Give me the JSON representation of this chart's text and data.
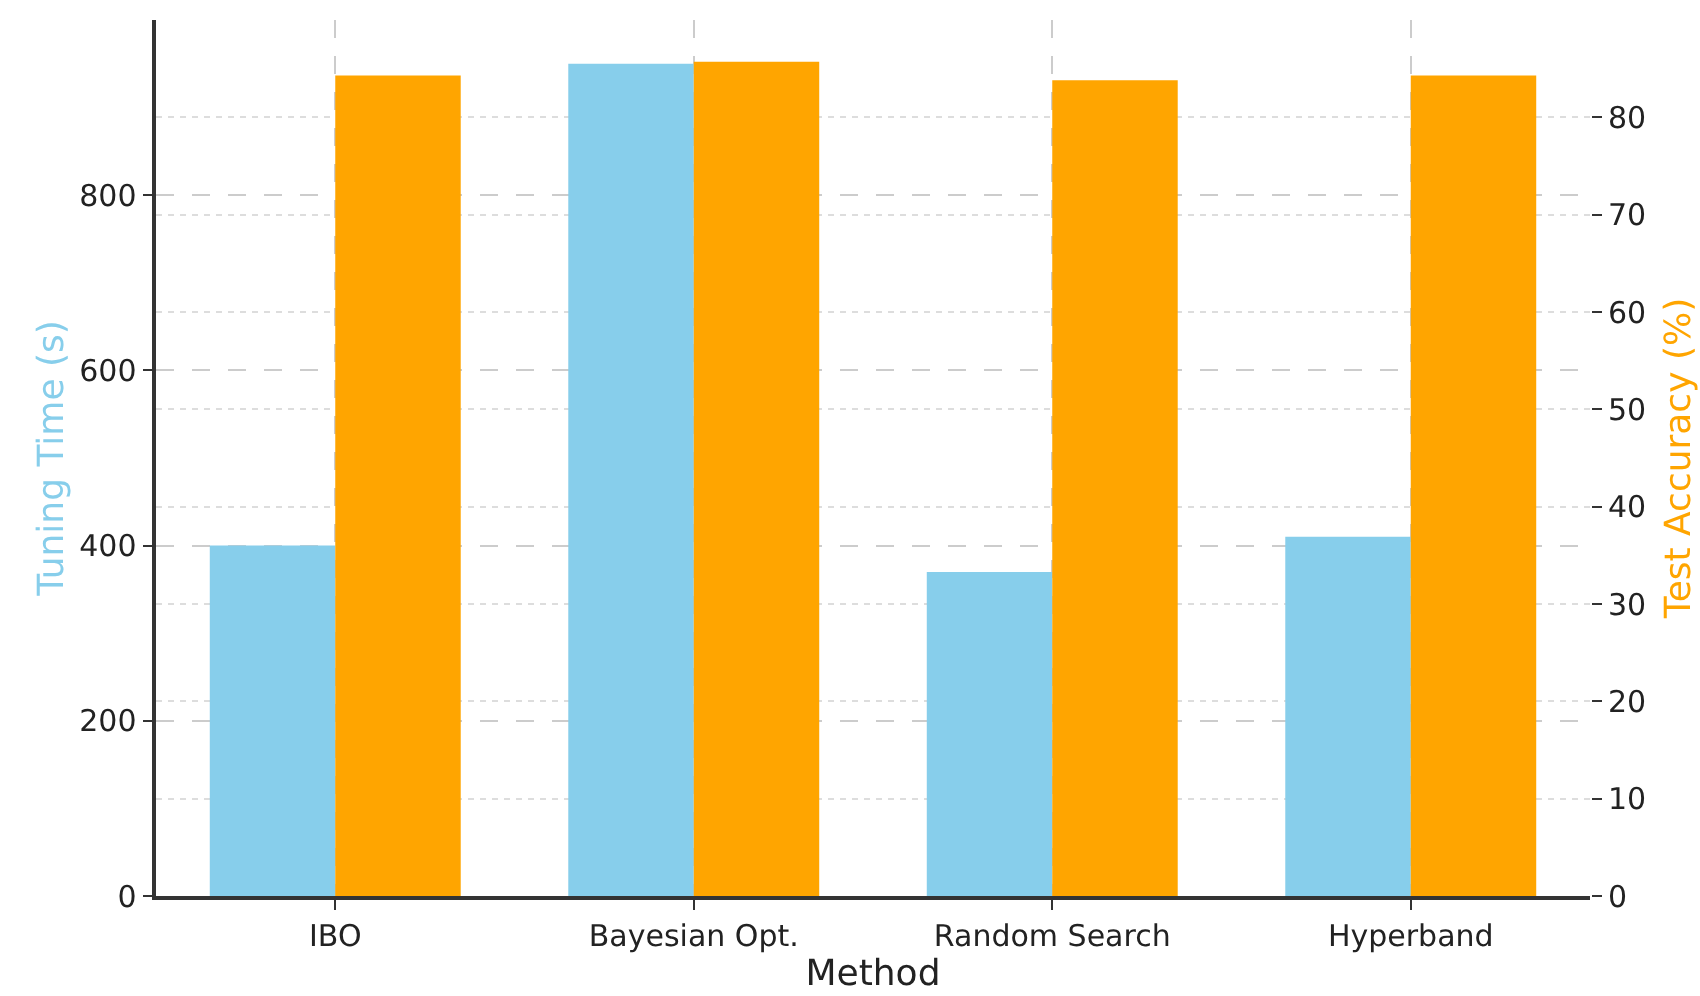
{
  "chart_data": {
    "type": "bar",
    "xlabel": "Method",
    "ylabel": "Tuning Time (s)",
    "y2label": "Test Accuracy (%)",
    "categories": [
      "IBO",
      "Bayesian Opt.",
      "Random Search",
      "Hyperband"
    ],
    "series": [
      {
        "color": "#87ceeb",
        "values": [
          400,
          950,
          370,
          410
        ]
      },
      {
        "color": "#ffa500",
        "values": [
          84.3,
          85.7,
          83.8,
          84.3
        ],
        "axis": "y2"
      }
    ],
    "ylim": [
      0,
      1000
    ],
    "yticks": [
      0,
      200,
      400,
      600,
      800
    ],
    "y2lim": [
      0,
      90
    ],
    "y2ticks": [
      0,
      10,
      20,
      30,
      40,
      50,
      60,
      70,
      80
    ],
    "grid": true
  }
}
